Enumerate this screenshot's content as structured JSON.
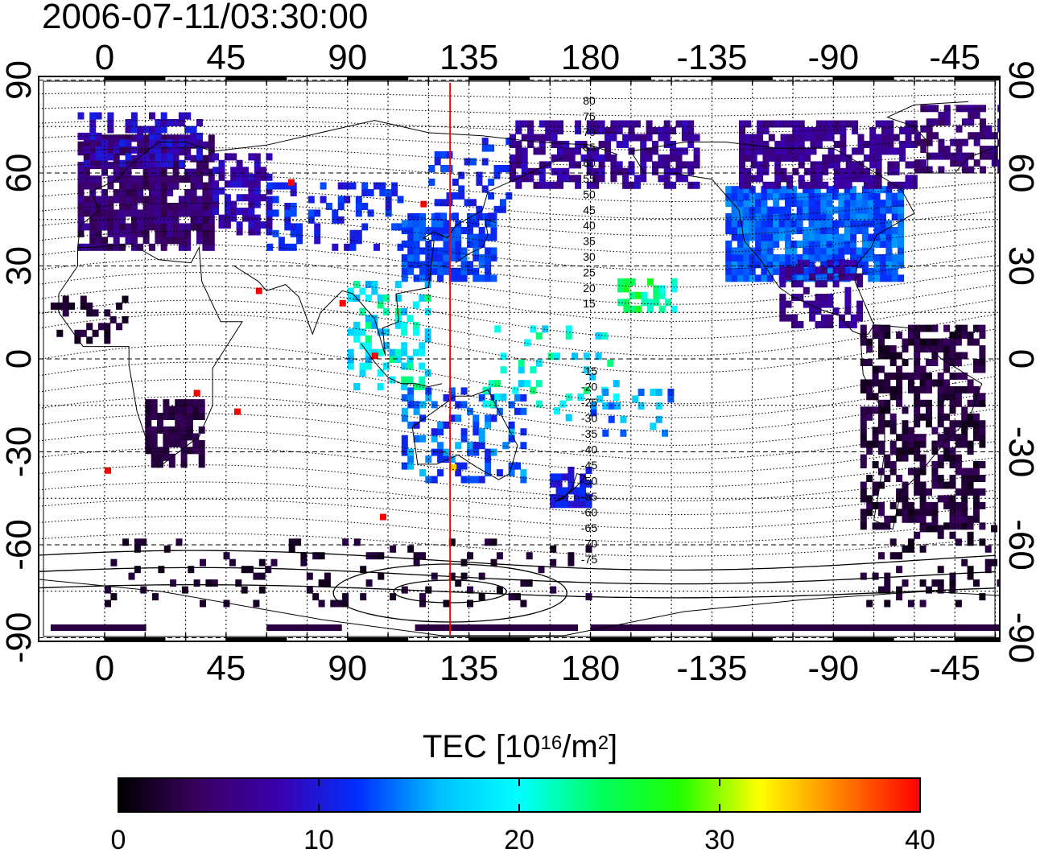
{
  "header": {
    "timestamp": "2006-07-11/03:30:00"
  },
  "map": {
    "type": "world TEC map (equirectangular)",
    "lon_ticks_labels": [
      "0",
      "45",
      "90",
      "135",
      "180",
      "-135",
      "-90",
      "-45"
    ],
    "lat_ticks_labels": [
      "90",
      "60",
      "30",
      "0",
      "-30",
      "-60",
      "-90"
    ],
    "contour_labels_north": [
      "80",
      "75",
      "70",
      "65",
      "60",
      "55",
      "50",
      "45",
      "40",
      "35",
      "30",
      "25",
      "20",
      "15"
    ],
    "contour_labels_south": [
      "-15",
      "-20",
      "-25",
      "-30",
      "-35",
      "-40",
      "-45",
      "-50",
      "-55",
      "-60",
      "-65",
      "-70",
      "-75"
    ],
    "grid": "dotted",
    "marker_line": {
      "color": "#ff0000",
      "lon": 128
    },
    "colors": {
      "frame": "#000000",
      "marker": "#ff0000"
    }
  },
  "colorbar": {
    "title_main": "TEC  [10",
    "title_sup1": "16",
    "title_mid": "/m",
    "title_sup2": "2",
    "title_end": "]",
    "tick_labels": [
      "0",
      "10",
      "20",
      "30",
      "40"
    ],
    "range": [
      0,
      40
    ],
    "colors": [
      "#000000",
      "#3a0060",
      "#3a00b0",
      "#0030ff",
      "#00c0ff",
      "#00ffff",
      "#00ff60",
      "#20ff00",
      "#ffff00",
      "#ff8000",
      "#ff0000"
    ]
  }
}
